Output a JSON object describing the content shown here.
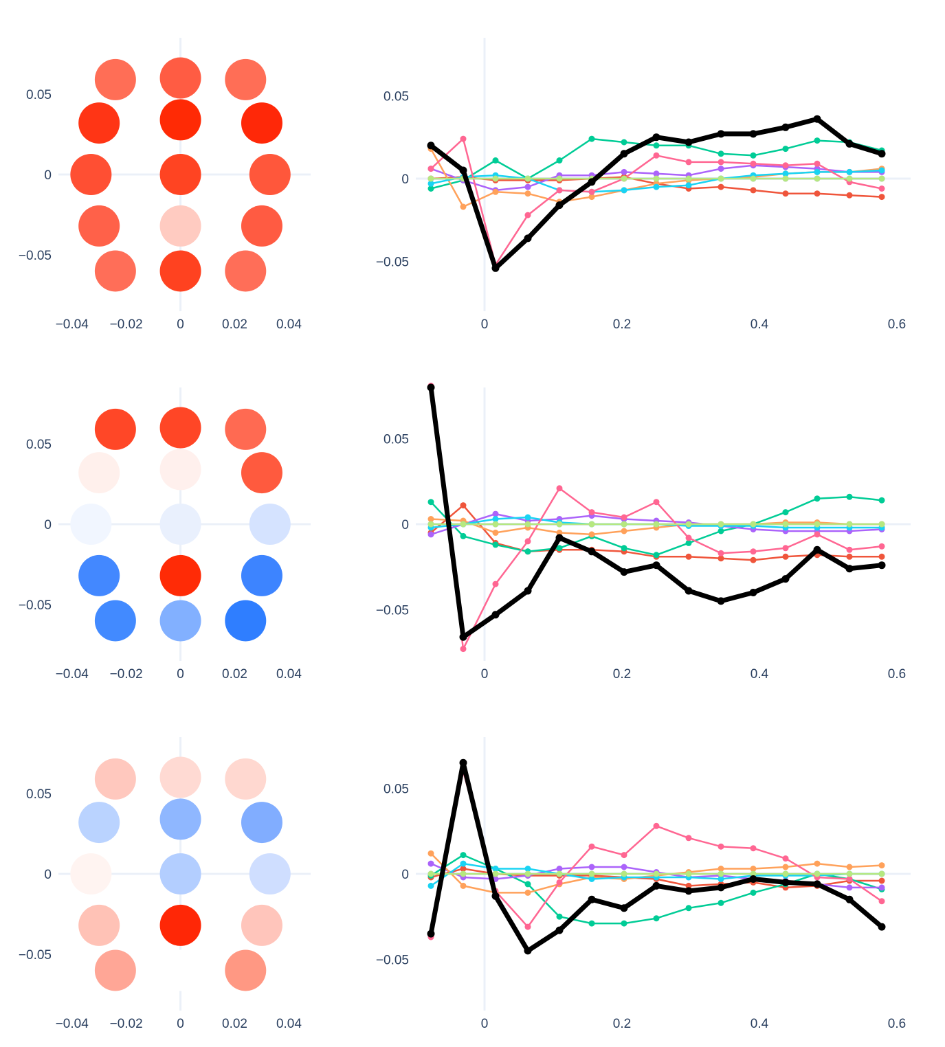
{
  "chart_data": [
    {
      "type": "scatter",
      "kind": "topomap",
      "row": 0,
      "xlim": [
        -0.045,
        0.048
      ],
      "ylim": [
        -0.085,
        0.085
      ],
      "x_ticks": [
        {
          "v": -0.04,
          "label": "−0.04"
        },
        {
          "v": -0.02,
          "label": "−0.02"
        },
        {
          "v": 0,
          "label": "0"
        },
        {
          "v": 0.02,
          "label": "0.02"
        },
        {
          "v": 0.04,
          "label": "0.04"
        }
      ],
      "y_ticks": [
        {
          "v": -0.05,
          "label": "−0.05"
        },
        {
          "v": 0,
          "label": "0"
        },
        {
          "v": 0.05,
          "label": "0.05"
        }
      ],
      "points": [
        {
          "x": -0.024,
          "y": 0.059,
          "color": "#ff6e56"
        },
        {
          "x": 0.0,
          "y": 0.06,
          "color": "#ff5c43"
        },
        {
          "x": 0.024,
          "y": 0.059,
          "color": "#ff6e56"
        },
        {
          "x": -0.03,
          "y": 0.032,
          "color": "#ff3515"
        },
        {
          "x": 0.0,
          "y": 0.034,
          "color": "#ff2a05"
        },
        {
          "x": 0.03,
          "y": 0.032,
          "color": "#ff2808"
        },
        {
          "x": -0.033,
          "y": 0.0,
          "color": "#ff4f33"
        },
        {
          "x": 0.0,
          "y": 0.0,
          "color": "#ff4422"
        },
        {
          "x": 0.033,
          "y": 0.0,
          "color": "#ff573b"
        },
        {
          "x": -0.03,
          "y": -0.032,
          "color": "#ff6149"
        },
        {
          "x": 0.0,
          "y": -0.032,
          "color": "#ffcbc1"
        },
        {
          "x": 0.03,
          "y": -0.032,
          "color": "#ff5b42"
        },
        {
          "x": -0.024,
          "y": -0.06,
          "color": "#ff6e58"
        },
        {
          "x": 0.0,
          "y": -0.06,
          "color": "#ff4220"
        },
        {
          "x": 0.024,
          "y": -0.06,
          "color": "#ff6e58"
        }
      ]
    },
    {
      "type": "line",
      "row": 0,
      "xlim": [
        -0.1,
        0.62
      ],
      "ylim": [
        -0.08,
        0.085
      ],
      "x_ticks": [
        {
          "v": 0,
          "label": "0"
        },
        {
          "v": 0.2,
          "label": "0.2"
        },
        {
          "v": 0.4,
          "label": "0.4"
        },
        {
          "v": 0.6,
          "label": "0.6"
        }
      ],
      "y_ticks": [
        {
          "v": -0.05,
          "label": "−0.05"
        },
        {
          "v": 0,
          "label": "0"
        },
        {
          "v": 0.05,
          "label": "0.05"
        }
      ],
      "x": [
        -0.078,
        -0.031,
        0.016,
        0.063,
        0.109,
        0.156,
        0.203,
        0.25,
        0.297,
        0.344,
        0.391,
        0.438,
        0.484,
        0.531,
        0.578
      ],
      "series": [
        {
          "color": "#636efa",
          "values": [
            0.0,
            0.0,
            0.0,
            0.0,
            0.0,
            0.0,
            0.0,
            0.0,
            0.0,
            0.0,
            0.0,
            0.0,
            0.0,
            0.0,
            0.0
          ]
        },
        {
          "color": "#ef553b",
          "values": [
            0.0,
            0.001,
            -0.001,
            -0.001,
            -0.001,
            0.0,
            0.001,
            -0.003,
            -0.006,
            -0.005,
            -0.007,
            -0.009,
            -0.009,
            -0.01,
            -0.011
          ]
        },
        {
          "color": "#00cc96",
          "values": [
            -0.006,
            -0.001,
            0.011,
            0.0,
            0.011,
            0.024,
            0.022,
            0.02,
            0.02,
            0.015,
            0.014,
            0.018,
            0.023,
            0.022,
            0.017
          ]
        },
        {
          "color": "#ab63fa",
          "values": [
            0.006,
            -0.001,
            -0.007,
            -0.005,
            0.002,
            0.002,
            0.004,
            0.003,
            0.002,
            0.006,
            0.008,
            0.007,
            0.006,
            0.004,
            0.004
          ]
        },
        {
          "color": "#ffa15a",
          "values": [
            0.018,
            -0.017,
            -0.008,
            -0.009,
            -0.014,
            -0.011,
            -0.007,
            -0.003,
            -0.001,
            0.0,
            0.001,
            0.003,
            0.004,
            0.004,
            0.006
          ]
        },
        {
          "color": "#19d3f3",
          "values": [
            -0.003,
            0.001,
            0.002,
            0.0,
            -0.007,
            -0.008,
            -0.007,
            -0.005,
            -0.004,
            0.0,
            0.002,
            0.003,
            0.004,
            0.004,
            0.005
          ]
        },
        {
          "color": "#ff6692",
          "values": [
            0.006,
            0.024,
            -0.052,
            -0.022,
            -0.007,
            -0.008,
            0.0,
            0.014,
            0.01,
            0.01,
            0.009,
            0.008,
            0.009,
            -0.002,
            -0.006
          ]
        },
        {
          "color": "#b6e880",
          "values": [
            0.0,
            0.0,
            0.0,
            0.0,
            0.0,
            0.0,
            0.0,
            0.0,
            0.0,
            0.0,
            0.0,
            0.0,
            0.0,
            0.0,
            0.0
          ]
        },
        {
          "color": "#000000",
          "width": 7,
          "values": [
            0.02,
            0.005,
            -0.054,
            -0.036,
            -0.016,
            -0.002,
            0.015,
            0.025,
            0.022,
            0.027,
            0.027,
            0.031,
            0.036,
            0.021,
            0.015
          ]
        }
      ]
    },
    {
      "type": "scatter",
      "kind": "topomap",
      "row": 1,
      "xlim": [
        -0.045,
        0.048
      ],
      "ylim": [
        -0.085,
        0.085
      ],
      "x_ticks": [
        {
          "v": -0.04,
          "label": "−0.04"
        },
        {
          "v": -0.02,
          "label": "−0.02"
        },
        {
          "v": 0,
          "label": "0"
        },
        {
          "v": 0.02,
          "label": "0.02"
        },
        {
          "v": 0.04,
          "label": "0.04"
        }
      ],
      "y_ticks": [
        {
          "v": -0.05,
          "label": "−0.05"
        },
        {
          "v": 0,
          "label": "0"
        },
        {
          "v": 0.05,
          "label": "0.05"
        }
      ],
      "points": [
        {
          "x": -0.024,
          "y": 0.059,
          "color": "#ff4727"
        },
        {
          "x": 0.0,
          "y": 0.06,
          "color": "#ff4626"
        },
        {
          "x": 0.024,
          "y": 0.059,
          "color": "#ff6a52"
        },
        {
          "x": -0.03,
          "y": 0.032,
          "color": "#fff0ec"
        },
        {
          "x": 0.0,
          "y": 0.034,
          "color": "#fff0ed"
        },
        {
          "x": 0.03,
          "y": 0.032,
          "color": "#ff5a3e"
        },
        {
          "x": -0.033,
          "y": 0.0,
          "color": "#f1f6ff"
        },
        {
          "x": 0.0,
          "y": 0.0,
          "color": "#e9f0fd"
        },
        {
          "x": 0.033,
          "y": 0.0,
          "color": "#d5e3ff"
        },
        {
          "x": -0.03,
          "y": -0.032,
          "color": "#4388ff"
        },
        {
          "x": 0.0,
          "y": -0.032,
          "color": "#ff2b06"
        },
        {
          "x": 0.03,
          "y": -0.032,
          "color": "#3d84ff"
        },
        {
          "x": -0.024,
          "y": -0.06,
          "color": "#428aff"
        },
        {
          "x": 0.0,
          "y": -0.06,
          "color": "#82b0ff"
        },
        {
          "x": 0.024,
          "y": -0.06,
          "color": "#2f7eff"
        }
      ]
    },
    {
      "type": "line",
      "row": 1,
      "xlim": [
        -0.1,
        0.62
      ],
      "ylim": [
        -0.08,
        0.08
      ],
      "x_ticks": [
        {
          "v": 0,
          "label": "0"
        },
        {
          "v": 0.2,
          "label": "0.2"
        },
        {
          "v": 0.4,
          "label": "0.4"
        },
        {
          "v": 0.6,
          "label": "0.6"
        }
      ],
      "y_ticks": [
        {
          "v": -0.05,
          "label": "−0.05"
        },
        {
          "v": 0,
          "label": "0"
        },
        {
          "v": 0.05,
          "label": "0.05"
        }
      ],
      "x": [
        -0.078,
        -0.031,
        0.016,
        0.063,
        0.109,
        0.156,
        0.203,
        0.25,
        0.297,
        0.344,
        0.391,
        0.438,
        0.484,
        0.531,
        0.578
      ],
      "series": [
        {
          "color": "#636efa",
          "values": [
            0.0,
            0.0,
            0.0,
            0.0,
            0.0,
            0.0,
            0.0,
            0.0,
            0.0,
            0.0,
            0.0,
            0.0,
            0.0,
            0.0,
            0.0
          ]
        },
        {
          "color": "#ef553b",
          "values": [
            -0.005,
            0.011,
            -0.011,
            -0.016,
            -0.015,
            -0.015,
            -0.016,
            -0.019,
            -0.019,
            -0.02,
            -0.021,
            -0.019,
            -0.018,
            -0.019,
            -0.019
          ]
        },
        {
          "color": "#00cc96",
          "values": [
            0.013,
            -0.007,
            -0.012,
            -0.016,
            -0.014,
            -0.007,
            -0.014,
            -0.018,
            -0.011,
            -0.004,
            0.0,
            0.007,
            0.015,
            0.016,
            0.014
          ]
        },
        {
          "color": "#ab63fa",
          "values": [
            -0.006,
            0.0,
            0.006,
            0.002,
            0.003,
            0.005,
            0.003,
            0.002,
            0.001,
            -0.001,
            -0.003,
            -0.004,
            -0.004,
            -0.004,
            -0.003
          ]
        },
        {
          "color": "#ffa15a",
          "values": [
            0.003,
            0.002,
            -0.005,
            -0.002,
            -0.005,
            -0.006,
            -0.004,
            -0.002,
            0.0,
            0.0,
            0.0,
            0.001,
            0.001,
            0.0,
            0.0
          ]
        },
        {
          "color": "#19d3f3",
          "values": [
            -0.002,
            0.0,
            0.003,
            0.004,
            0.001,
            0.0,
            0.0,
            0.0,
            -0.001,
            -0.001,
            -0.001,
            -0.002,
            -0.002,
            -0.002,
            -0.002
          ]
        },
        {
          "color": "#ff6692",
          "values": [
            0.081,
            -0.073,
            -0.035,
            -0.01,
            0.021,
            0.007,
            0.004,
            0.013,
            -0.008,
            -0.017,
            -0.016,
            -0.014,
            -0.006,
            -0.015,
            -0.013
          ]
        },
        {
          "color": "#b6e880",
          "values": [
            0.0,
            0.0,
            0.0,
            0.0,
            0.0,
            0.0,
            0.0,
            0.0,
            0.0,
            0.0,
            0.0,
            0.0,
            0.0,
            0.0,
            0.0
          ]
        },
        {
          "color": "#000000",
          "width": 7,
          "values": [
            0.08,
            -0.066,
            -0.053,
            -0.039,
            -0.008,
            -0.016,
            -0.028,
            -0.024,
            -0.039,
            -0.045,
            -0.04,
            -0.032,
            -0.015,
            -0.026,
            -0.024
          ]
        }
      ]
    },
    {
      "type": "scatter",
      "kind": "topomap",
      "row": 2,
      "xlim": [
        -0.045,
        0.048
      ],
      "ylim": [
        -0.085,
        0.085
      ],
      "x_ticks": [
        {
          "v": -0.04,
          "label": "−0.04"
        },
        {
          "v": -0.02,
          "label": "−0.02"
        },
        {
          "v": 0,
          "label": "0"
        },
        {
          "v": 0.02,
          "label": "0.02"
        },
        {
          "v": 0.04,
          "label": "0.04"
        }
      ],
      "y_ticks": [
        {
          "v": -0.05,
          "label": "−0.05"
        },
        {
          "v": 0,
          "label": "0"
        },
        {
          "v": 0.05,
          "label": "0.05"
        }
      ],
      "points": [
        {
          "x": -0.024,
          "y": 0.059,
          "color": "#ffc8be"
        },
        {
          "x": 0.0,
          "y": 0.06,
          "color": "#ffdad3"
        },
        {
          "x": 0.024,
          "y": 0.059,
          "color": "#ffd8d0"
        },
        {
          "x": -0.03,
          "y": 0.032,
          "color": "#bad3ff"
        },
        {
          "x": 0.0,
          "y": 0.034,
          "color": "#8fb7ff"
        },
        {
          "x": 0.03,
          "y": 0.032,
          "color": "#81adff"
        },
        {
          "x": -0.033,
          "y": 0.0,
          "color": "#fff4f1"
        },
        {
          "x": 0.0,
          "y": 0.0,
          "color": "#b3ceff"
        },
        {
          "x": 0.033,
          "y": 0.0,
          "color": "#cfdeff"
        },
        {
          "x": -0.03,
          "y": -0.032,
          "color": "#ffc2b6"
        },
        {
          "x": 0.0,
          "y": -0.032,
          "color": "#ff2706"
        },
        {
          "x": 0.03,
          "y": -0.032,
          "color": "#ffc5bb"
        },
        {
          "x": -0.024,
          "y": -0.06,
          "color": "#ffa696"
        },
        {
          "x": 0.0,
          "y": -0.06,
          "color": "#ffffff"
        },
        {
          "x": 0.024,
          "y": -0.06,
          "color": "#ff9883"
        }
      ]
    },
    {
      "type": "line",
      "row": 2,
      "xlim": [
        -0.1,
        0.62
      ],
      "ylim": [
        -0.08,
        0.08
      ],
      "x_ticks": [
        {
          "v": 0,
          "label": "0"
        },
        {
          "v": 0.2,
          "label": "0.2"
        },
        {
          "v": 0.4,
          "label": "0.4"
        },
        {
          "v": 0.6,
          "label": "0.6"
        }
      ],
      "y_ticks": [
        {
          "v": -0.05,
          "label": "−0.05"
        },
        {
          "v": 0,
          "label": "0"
        },
        {
          "v": 0.05,
          "label": "0.05"
        }
      ],
      "x": [
        -0.078,
        -0.031,
        0.016,
        0.063,
        0.109,
        0.156,
        0.203,
        0.25,
        0.297,
        0.344,
        0.391,
        0.438,
        0.484,
        0.531,
        0.578
      ],
      "series": [
        {
          "color": "#636efa",
          "values": [
            0.0,
            0.0,
            0.0,
            0.0,
            0.0,
            0.0,
            0.0,
            0.0,
            0.0,
            0.0,
            0.0,
            0.0,
            0.0,
            0.0,
            0.0
          ]
        },
        {
          "color": "#ef553b",
          "values": [
            -0.002,
            0.003,
            0.0,
            -0.001,
            -0.001,
            -0.001,
            -0.002,
            -0.003,
            -0.007,
            -0.006,
            -0.005,
            -0.008,
            -0.007,
            -0.004,
            -0.004
          ]
        },
        {
          "color": "#00cc96",
          "values": [
            -0.001,
            0.011,
            0.003,
            -0.006,
            -0.025,
            -0.029,
            -0.029,
            -0.026,
            -0.02,
            -0.017,
            -0.011,
            -0.006,
            0.0,
            -0.003,
            -0.009
          ]
        },
        {
          "color": "#ab63fa",
          "values": [
            0.006,
            -0.002,
            -0.003,
            -0.001,
            0.003,
            0.004,
            0.004,
            0.001,
            -0.002,
            -0.001,
            -0.003,
            -0.004,
            -0.006,
            -0.008,
            -0.008
          ]
        },
        {
          "color": "#ffa15a",
          "values": [
            0.012,
            -0.007,
            -0.011,
            -0.011,
            -0.006,
            -0.002,
            -0.003,
            -0.001,
            0.001,
            0.003,
            0.003,
            0.004,
            0.006,
            0.004,
            0.005
          ]
        },
        {
          "color": "#19d3f3",
          "values": [
            -0.007,
            0.006,
            0.003,
            0.003,
            0.0,
            -0.003,
            -0.002,
            -0.002,
            -0.002,
            -0.003,
            -0.001,
            -0.001,
            -0.001,
            0.0,
            0.0
          ]
        },
        {
          "color": "#ff6692",
          "values": [
            -0.037,
            0.06,
            -0.01,
            -0.031,
            -0.005,
            0.016,
            0.011,
            0.028,
            0.021,
            0.016,
            0.015,
            0.009,
            -0.002,
            -0.003,
            -0.016
          ]
        },
        {
          "color": "#b6e880",
          "values": [
            0.0,
            0.0,
            0.0,
            0.0,
            0.0,
            0.0,
            0.0,
            0.0,
            0.0,
            0.0,
            0.0,
            0.0,
            0.0,
            0.0,
            0.0
          ]
        },
        {
          "color": "#000000",
          "width": 7,
          "values": [
            -0.035,
            0.065,
            -0.013,
            -0.045,
            -0.033,
            -0.015,
            -0.02,
            -0.007,
            -0.01,
            -0.008,
            -0.003,
            -0.005,
            -0.006,
            -0.015,
            -0.031
          ]
        }
      ]
    }
  ]
}
